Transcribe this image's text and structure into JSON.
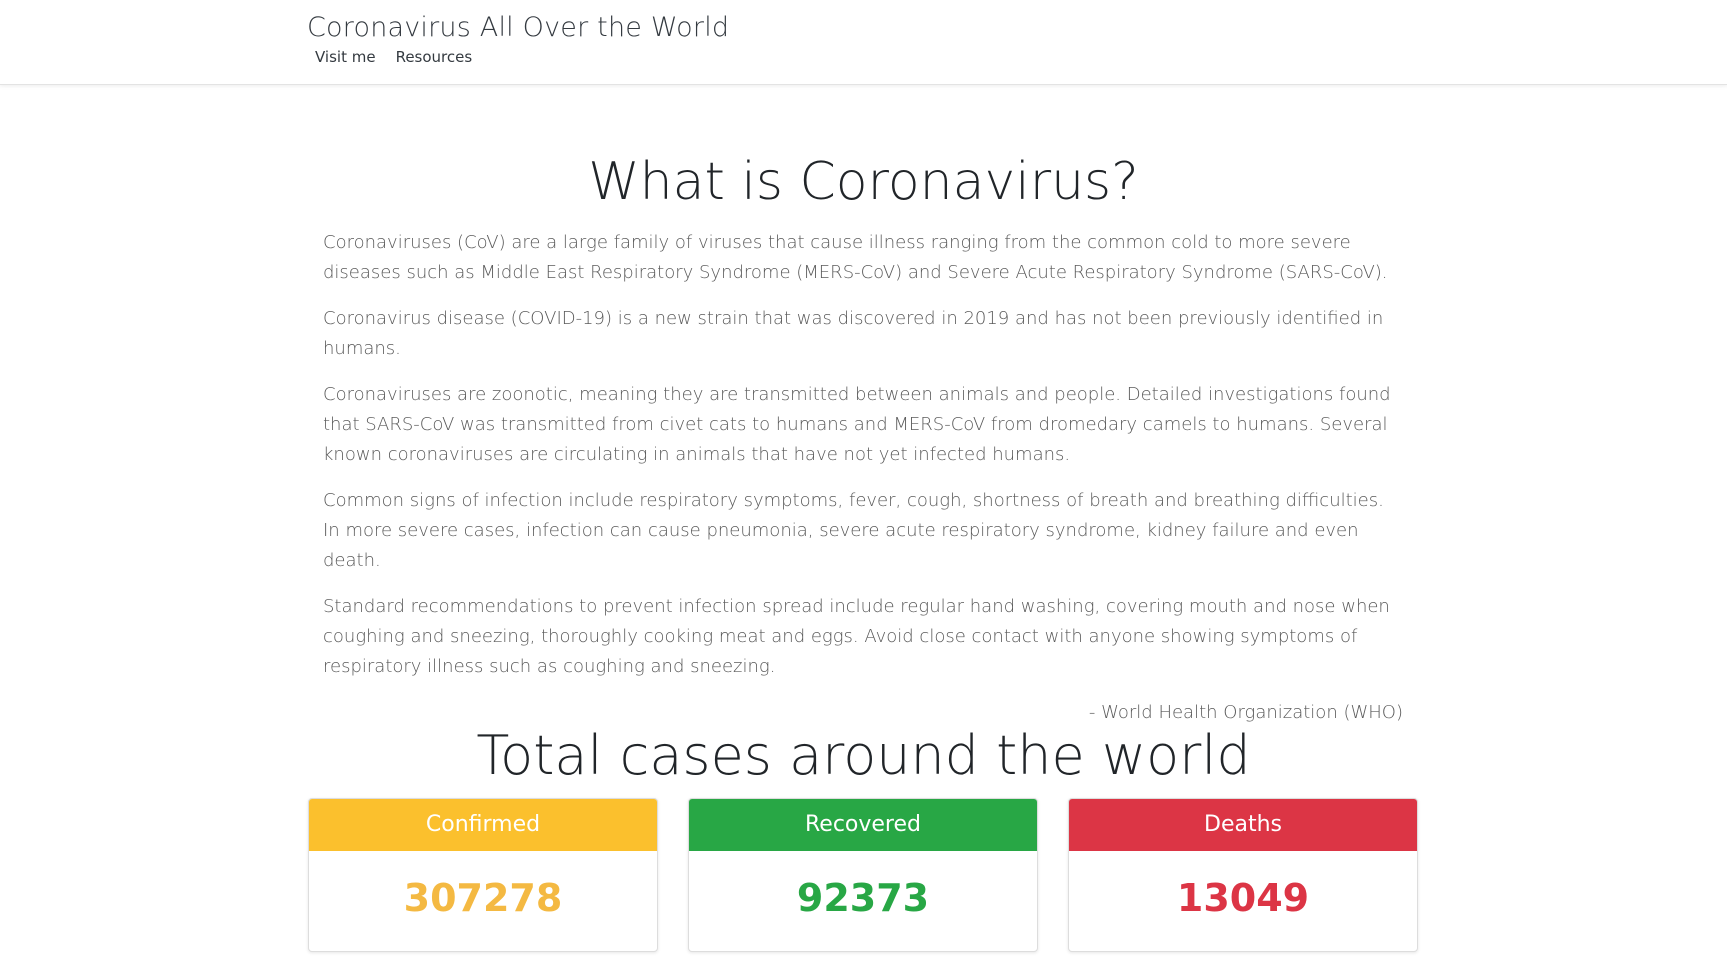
{
  "navbar": {
    "brand": "Coronavirus All Over the World",
    "links": [
      "Visit me",
      "Resources"
    ]
  },
  "about": {
    "title": "What is Coronavirus?",
    "paragraphs": [
      "Coronaviruses (CoV) are a large family of viruses that cause illness ranging from the common cold to more severe diseases such as Middle East Respiratory Syndrome (MERS-CoV) and Severe Acute Respiratory Syndrome (SARS-CoV).",
      "Coronavirus disease (COVID-19) is a new strain that was discovered in 2019 and has not been previously identified in humans.",
      "Coronaviruses are zoonotic, meaning they are transmitted between animals and people. Detailed investigations found that SARS-CoV was transmitted from civet cats to humans and MERS-CoV from dromedary camels to humans. Several known coronaviruses are circulating in animals that have not yet infected humans.",
      "Common signs of infection include respiratory symptoms, fever, cough, shortness of breath and breathing difficulties. In more severe cases, infection can cause pneumonia, severe acute respiratory syndrome, kidney failure and even death.",
      "Standard recommendations to prevent infection spread include regular hand washing, covering mouth and nose when coughing and sneezing, thoroughly cooking meat and eggs. Avoid close contact with anyone showing symptoms of respiratory illness such as coughing and sneezing."
    ],
    "attribution": "- World Health Organization (WHO)"
  },
  "totals": {
    "title": "Total cases around the world",
    "cards": [
      {
        "label": "Confirmed",
        "value": "307278",
        "header_color": "#fbc02d",
        "text_color": "#f4b942"
      },
      {
        "label": "Recovered",
        "value": "92373",
        "header_color": "#28a745",
        "text_color": "#28a745"
      },
      {
        "label": "Deaths",
        "value": "13049",
        "header_color": "#dc3545",
        "text_color": "#dc3545"
      }
    ]
  }
}
